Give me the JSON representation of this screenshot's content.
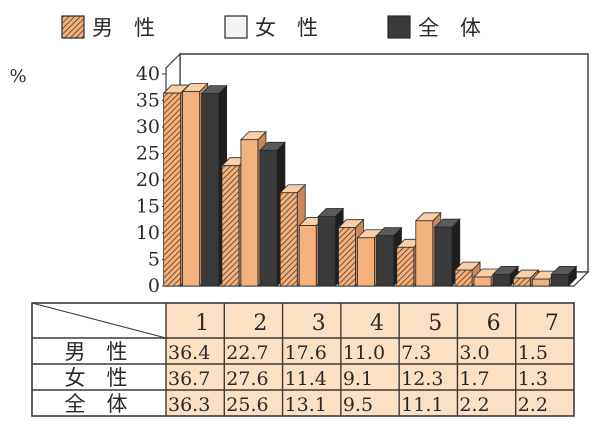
{
  "chart_data": {
    "type": "bar",
    "style": "3d-clustered",
    "unit_label": "%",
    "ylim": [
      0,
      40
    ],
    "yticks": [
      "0",
      "5",
      "10",
      "15",
      "20",
      "25",
      "30",
      "35",
      "40"
    ],
    "categories": [
      "1",
      "2",
      "3",
      "4",
      "5",
      "6",
      "7"
    ],
    "legend_placement": "top",
    "series": [
      {
        "name": "男　性",
        "fill": "hatched",
        "values": [
          36.4,
          22.7,
          17.6,
          11.0,
          7.3,
          3.0,
          1.5
        ]
      },
      {
        "name": "女　性",
        "fill": "light",
        "values": [
          36.7,
          27.6,
          11.4,
          9.1,
          12.3,
          1.7,
          1.3
        ]
      },
      {
        "name": "全　体",
        "fill": "dark",
        "values": [
          36.3,
          25.6,
          13.1,
          9.5,
          11.1,
          2.2,
          2.2
        ]
      }
    ],
    "table": {
      "rows": [
        {
          "label": "男　性",
          "cells": [
            "36.4",
            "22.7",
            "17.6",
            "11.0",
            "7.3",
            "3.0",
            "1.5"
          ]
        },
        {
          "label": "女　性",
          "cells": [
            "36.7",
            "27.6",
            "11.4",
            "9.1",
            "12.3",
            "1.7",
            "1.3"
          ]
        },
        {
          "label": "全　体",
          "cells": [
            "36.3",
            "25.6",
            "13.1",
            "9.5",
            "11.1",
            "2.2",
            "2.2"
          ]
        }
      ]
    },
    "colors": {
      "bar_face": "#f2b27e",
      "bar_top": "#f8cfa6",
      "bar_side": "#c9875a",
      "dark_face": "#3a3a3a",
      "dark_top": "#5a5a5a",
      "dark_side": "#1e1e1e",
      "grid": "#3a3a3a",
      "table_fill": "#fbe0c4",
      "table_line": "#3a3a3a"
    }
  }
}
